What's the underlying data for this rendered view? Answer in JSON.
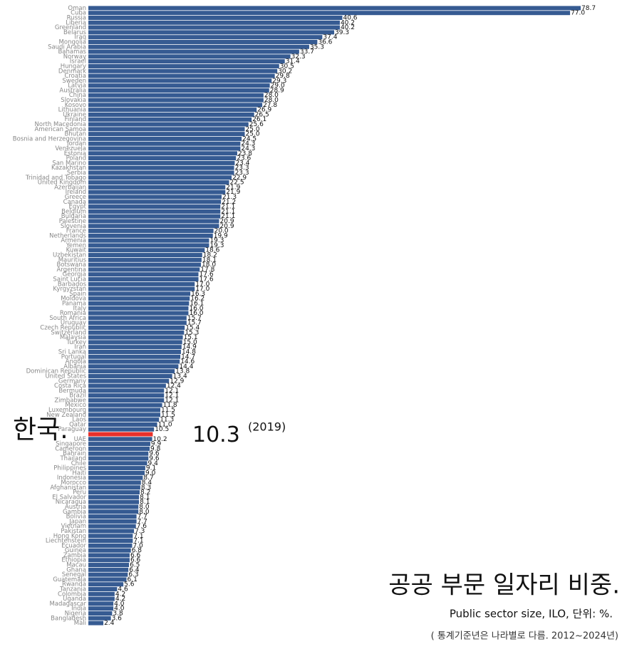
{
  "chart_data": {
    "type": "bar",
    "orientation": "horizontal",
    "title": "공공 부문 일자리 비중.",
    "subtitle": "Public sector size, ILO, 단위: %.",
    "note": "( 통계기준년은 나라별로 다름. 2012~2024년)",
    "annotations": [
      "한국.",
      "(2019)"
    ],
    "highlight_index": 88,
    "color": "#365b92",
    "highlight_color": "#e8302a",
    "categories": [
      "Oman",
      "Cuba",
      "Russia",
      "Liberia",
      "Greenland",
      "Belarus",
      "Iraq",
      "Mongolia",
      "Saudi Arabia",
      "Bahamas",
      "Norway",
      "Israel",
      "Hungary",
      "Denmark",
      "Croatia",
      "Sweden",
      "Latvia",
      "Australia",
      "China",
      "Slovakia",
      "Kosovo",
      "Lithuania",
      "Ukraine",
      "Finland",
      "North Macedonia",
      "American Samoa",
      "Bhutan",
      "Bosnia and Herzegovina",
      "Jordan",
      "Venezuela",
      "Estonia",
      "Poland",
      "San Marino",
      "Kazakhstan",
      "Serbia",
      "Trinidad and Tobago",
      "United Kingdom",
      "Azerbaijan",
      "Ireland",
      "Greece",
      "Canada",
      "Egypt",
      "Belgium",
      "Bulgaria",
      "Palestine",
      "Slovenia",
      "France",
      "Netherlands",
      "Armenia",
      "Yemen",
      "Kuwait",
      "Uzbekistan",
      "Mauritius",
      "Botswana",
      "Argentina",
      "Georgia",
      "Saint Lucia",
      "Barbados",
      "Kyrgyzstan",
      "Spain",
      "Moldova",
      "Panama",
      "Italy",
      "Romania",
      "South Africa",
      "Uruguay",
      "Czech Republic",
      "Switzerland",
      "Malaysia",
      "Turkey",
      "Iran",
      "Sri Lanka",
      "Portugal",
      "Angola",
      "Albania",
      "Dominican Republic",
      "United States",
      "Germany",
      "Costa Rica",
      "Bermuda",
      "Brazil",
      "Zimbabwe",
      "Mexico",
      "Luxembourg",
      "New Zealand",
      "Laos",
      "Qatar",
      "Paraguay",
      null,
      "UAE",
      "Singapore",
      "Cameroon",
      "Bahrain",
      "Thailand",
      "Chile",
      "Philippines",
      "Haiti",
      "Indonesia",
      "Morocco",
      "Afghanistan",
      "Peru",
      "El Salvador",
      "Nicaragua",
      "Austria",
      "Gambia",
      "Bolivia",
      "Japan",
      "Vietnam",
      "Pakistan",
      "Hong Kong",
      "Liechtenstein",
      "Ecuador",
      "Guinea",
      "Zambia",
      "Ethiopia",
      "Macau",
      "Ghana",
      "Senegal",
      "Guatemala",
      "Rwanda",
      "Tanzania",
      "Colombia",
      "Uganda",
      "Madagascar",
      "India",
      "Nigeria",
      "Bangladesh",
      "Mali"
    ],
    "values": [
      78.7,
      77.0,
      40.6,
      40.2,
      40.2,
      39.3,
      37.4,
      36.6,
      35.3,
      33.7,
      32.3,
      31.4,
      30.5,
      30.2,
      29.8,
      29.3,
      29.0,
      28.9,
      28.0,
      28.0,
      27.8,
      26.9,
      26.5,
      26.1,
      25.6,
      25.0,
      25.0,
      24.5,
      24.3,
      24.3,
      23.8,
      23.6,
      23.4,
      23.3,
      23.3,
      22.9,
      22.5,
      21.9,
      21.9,
      21.3,
      21.2,
      21.1,
      21.1,
      21.1,
      20.9,
      20.9,
      20.0,
      19.9,
      19.3,
      19.3,
      18.6,
      18.2,
      18.1,
      18.0,
      17.8,
      17.6,
      17.6,
      17.0,
      17.0,
      16.3,
      16.2,
      16.1,
      16.0,
      16.0,
      15.7,
      15.7,
      15.4,
      15.3,
      15.1,
      15.0,
      14.9,
      14.8,
      14.7,
      14.6,
      14.4,
      13.8,
      13.4,
      12.9,
      12.4,
      12.1,
      12.1,
      12.1,
      11.8,
      11.5,
      11.5,
      11.3,
      11.0,
      10.5,
      10.3,
      10.2,
      9.9,
      9.8,
      9.6,
      9.6,
      9.4,
      9.1,
      9.0,
      8.7,
      8.4,
      8.3,
      8.2,
      8.1,
      8.1,
      8.0,
      8.0,
      7.7,
      7.7,
      7.6,
      7.3,
      7.1,
      7.1,
      7.0,
      6.8,
      6.6,
      6.6,
      6.5,
      6.4,
      6.3,
      6.1,
      5.6,
      4.6,
      4.2,
      4.2,
      4.0,
      4.0,
      3.8,
      3.6,
      2.4
    ],
    "value_labels": [
      "78.7",
      "77.0",
      "40.6",
      "40.2",
      "40.2",
      "39.3",
      "37.4",
      "36.6",
      "35.3",
      "33.7",
      "32.3",
      "31.4",
      "30.5",
      "30.2",
      "29.8",
      "29.3",
      "29.0",
      "28.9",
      "28.0",
      "28.0",
      "27.8",
      "26.9",
      "26.5",
      "26.1",
      "25.6",
      "25.0",
      "25.0",
      "24.5",
      "24.3",
      "24.3",
      "23.8",
      "23.6",
      "23.4",
      "23.3",
      "23.3",
      "22.9",
      "22.5",
      "21.9",
      "21.9",
      "21.3",
      "21.2",
      "21.1",
      "21.1",
      "21.1",
      "20.9",
      "20.9",
      "20.0",
      "19.9",
      "19.3",
      "19.3",
      "18.6",
      "18.2",
      "18.1",
      "18.0",
      "17.8",
      "17.6",
      "17.6",
      "17.0",
      "17.0",
      "16.3",
      "16.2",
      "16.1",
      "16.0",
      "16.0",
      "15.7",
      "15.7",
      "15.4",
      "15.3",
      "15.1",
      "15.0",
      "14.9",
      "14.8",
      "14.7",
      "14.6",
      "14.4",
      "13.8",
      "13.4",
      "12.9",
      "12.4",
      "12.1",
      "12.1",
      "12.1",
      "11.8",
      "11.5",
      "11.5",
      "11.3",
      "11.0",
      "10.5",
      "10.3",
      "10.2",
      "9.9",
      "9.8",
      "9.6",
      "9.6",
      "9.4",
      "9.1",
      "9.0",
      "8.7",
      "8.4",
      "8.3",
      "8.2",
      "8.1",
      "8.1",
      "8.0",
      "8.0",
      "7.7",
      "7.7",
      "7.6",
      "7.3",
      "7.1",
      "7.1",
      "7.0",
      "6.8",
      "6.6",
      "6.6",
      "6.5",
      "6.4",
      "6.3",
      "6.1",
      "5.6",
      "4.6",
      "4.2",
      "4.2",
      "4.0",
      "4.0",
      "3.8",
      "3.6",
      "2.4"
    ]
  }
}
